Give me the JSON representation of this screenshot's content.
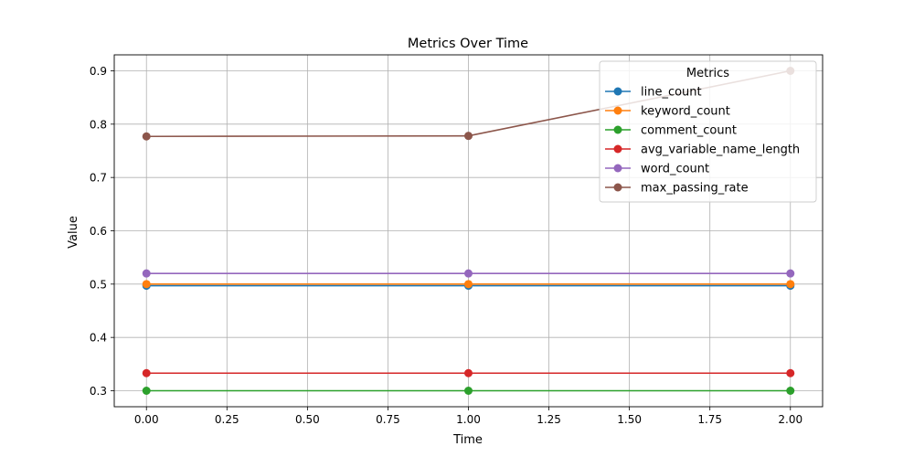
{
  "chart_data": {
    "type": "line",
    "title": "Metrics Over Time",
    "xlabel": "Time",
    "ylabel": "Value",
    "x": [
      0,
      1,
      2
    ],
    "xlim": [
      -0.1,
      2.1
    ],
    "ylim": [
      0.27,
      0.93
    ],
    "xticks": [
      "0.00",
      "0.25",
      "0.50",
      "0.75",
      "1.00",
      "1.25",
      "1.50",
      "1.75",
      "2.00"
    ],
    "xtick_values": [
      0,
      0.25,
      0.5,
      0.75,
      1.0,
      1.25,
      1.5,
      1.75,
      2.0
    ],
    "yticks": [
      "0.3",
      "0.4",
      "0.5",
      "0.6",
      "0.7",
      "0.8",
      "0.9"
    ],
    "ytick_values": [
      0.3,
      0.4,
      0.5,
      0.6,
      0.7,
      0.8,
      0.9
    ],
    "grid": true,
    "legend_title": "Metrics",
    "legend_position": "top-right",
    "series": [
      {
        "name": "line_count",
        "color": "#1f77b4",
        "values": [
          0.497,
          0.497,
          0.497
        ]
      },
      {
        "name": "keyword_count",
        "color": "#ff7f0e",
        "values": [
          0.5,
          0.5,
          0.5
        ]
      },
      {
        "name": "comment_count",
        "color": "#2ca02c",
        "values": [
          0.3,
          0.3,
          0.3
        ]
      },
      {
        "name": "avg_variable_name_length",
        "color": "#d62728",
        "values": [
          0.333,
          0.333,
          0.333
        ]
      },
      {
        "name": "word_count",
        "color": "#9467bd",
        "values": [
          0.52,
          0.52,
          0.52
        ]
      },
      {
        "name": "max_passing_rate",
        "color": "#8c564b",
        "values": [
          0.777,
          0.778,
          0.9
        ]
      }
    ]
  }
}
